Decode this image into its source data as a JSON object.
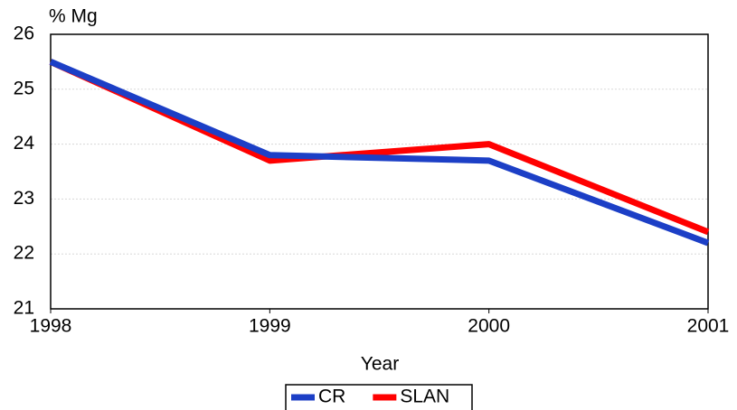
{
  "chart_data": {
    "type": "line",
    "y_label": "% Mg",
    "x_label": "Year",
    "x": [
      1998,
      1999,
      2000,
      2001
    ],
    "series": [
      {
        "name": "CR",
        "color": "#1c3fc6",
        "values": [
          25.5,
          23.8,
          23.7,
          22.2
        ]
      },
      {
        "name": "SLAN",
        "color": "#ff0000",
        "values": [
          25.5,
          23.7,
          24.0,
          22.4
        ]
      }
    ],
    "xlim": [
      1998,
      2001
    ],
    "xticks": [
      1998,
      1999,
      2000,
      2001
    ],
    "ylim": [
      21,
      26
    ],
    "yticks": [
      21,
      22,
      23,
      24,
      25,
      26
    ],
    "grid": true,
    "legend": "bottom"
  }
}
